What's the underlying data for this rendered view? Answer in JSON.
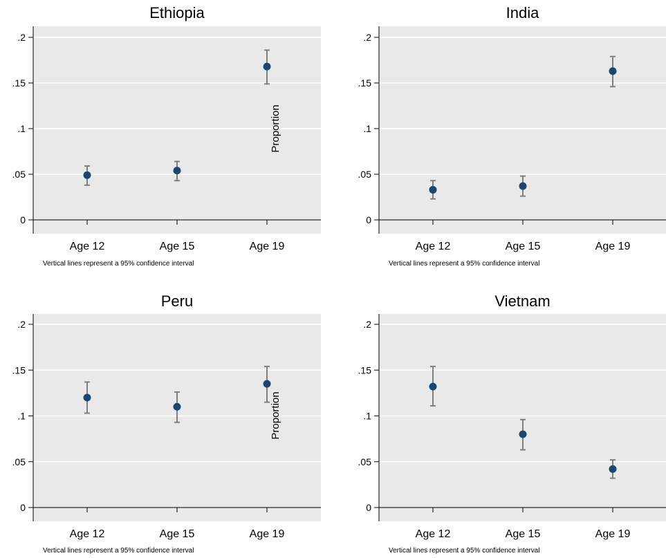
{
  "chart_data": [
    {
      "type": "scatter",
      "title": "Ethiopia",
      "categories": [
        "Age 12",
        "Age 15",
        "Age 19"
      ],
      "yticks": [
        "0",
        ".05",
        ".1",
        ".15",
        ".2"
      ],
      "ylim": [
        0,
        0.2
      ],
      "grid": true,
      "series": [
        {
          "values": [
            0.049,
            0.054,
            0.168
          ],
          "ci_low": [
            0.038,
            0.043,
            0.149
          ],
          "ci_high": [
            0.059,
            0.064,
            0.186
          ]
        }
      ],
      "annotation": "Proportion",
      "note": "Vertical lines represent a 95% confidence interval"
    },
    {
      "type": "scatter",
      "title": "India",
      "categories": [
        "Age 12",
        "Age 15",
        "Age 19"
      ],
      "yticks": [
        "0",
        ".05",
        ".1",
        ".15",
        ".2"
      ],
      "ylim": [
        0,
        0.2
      ],
      "grid": true,
      "series": [
        {
          "values": [
            0.033,
            0.037,
            0.163
          ],
          "ci_low": [
            0.023,
            0.026,
            0.146
          ],
          "ci_high": [
            0.043,
            0.048,
            0.179
          ]
        }
      ],
      "annotation": "",
      "note": "Vertical lines represent a 95% confidence interval"
    },
    {
      "type": "scatter",
      "title": "Peru",
      "categories": [
        "Age 12",
        "Age 15",
        "Age 19"
      ],
      "yticks": [
        "0",
        ".05",
        ".1",
        ".15",
        ".2"
      ],
      "ylim": [
        0,
        0.2
      ],
      "grid": true,
      "series": [
        {
          "values": [
            0.12,
            0.11,
            0.135
          ],
          "ci_low": [
            0.103,
            0.093,
            0.115
          ],
          "ci_high": [
            0.137,
            0.126,
            0.154
          ]
        }
      ],
      "annotation": "Proportion",
      "note": "Vertical lines represent a 95% confidence interval"
    },
    {
      "type": "scatter",
      "title": "Vietnam",
      "categories": [
        "Age 12",
        "Age 15",
        "Age 19"
      ],
      "yticks": [
        "0",
        ".05",
        ".1",
        ".15",
        ".2"
      ],
      "ylim": [
        0,
        0.2
      ],
      "grid": true,
      "series": [
        {
          "values": [
            0.132,
            0.08,
            0.042
          ],
          "ci_low": [
            0.111,
            0.063,
            0.032
          ],
          "ci_high": [
            0.154,
            0.096,
            0.052
          ]
        }
      ],
      "annotation": "",
      "note": "Vertical lines represent a 95% confidence interval"
    }
  ],
  "colors": {
    "plot_bg": "#e9e9e9",
    "grid": "#ffffff",
    "point": "#1a476f",
    "ci": "#7f7f7f",
    "axis": "#000000",
    "text": "#000000"
  }
}
